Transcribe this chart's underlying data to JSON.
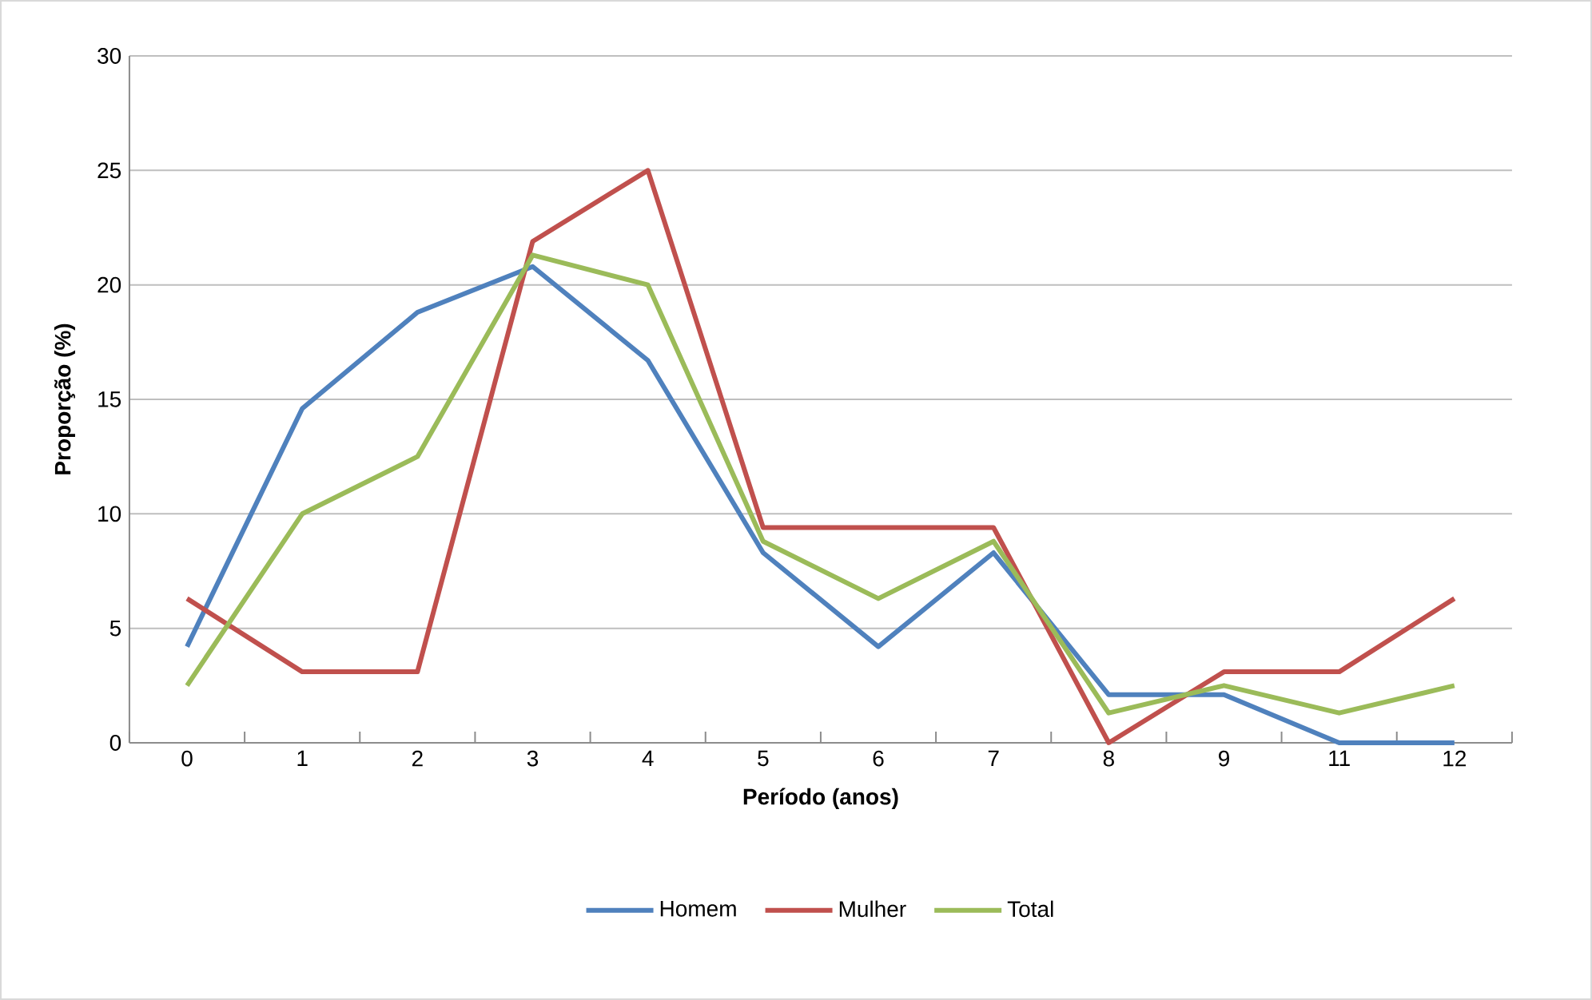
{
  "chart_data": {
    "type": "line",
    "xlabel": "Período (anos)",
    "ylabel": "Proporção (%)",
    "categories": [
      "0",
      "1",
      "2",
      "3",
      "4",
      "5",
      "6",
      "7",
      "8",
      "9",
      "11",
      "12"
    ],
    "series": [
      {
        "name": "Homem",
        "color": "#4f81bd",
        "values": [
          4.2,
          14.6,
          18.8,
          20.8,
          16.7,
          8.3,
          4.2,
          8.3,
          2.1,
          2.1,
          0,
          0
        ]
      },
      {
        "name": "Mulher",
        "color": "#c0504d",
        "values": [
          6.3,
          3.1,
          3.1,
          21.9,
          25,
          9.4,
          9.4,
          9.4,
          0,
          3.1,
          3.1,
          6.3
        ]
      },
      {
        "name": "Total",
        "color": "#9bbb59",
        "values": [
          2.5,
          10,
          12.5,
          21.3,
          20,
          8.8,
          6.3,
          8.8,
          1.3,
          2.5,
          1.3,
          2.5
        ]
      }
    ],
    "ylim": [
      0,
      30
    ],
    "yticks": [
      0,
      5,
      10,
      15,
      20,
      25,
      30
    ],
    "grid": "y",
    "legend": "bottom",
    "marker": "none",
    "line_style": "solid"
  }
}
